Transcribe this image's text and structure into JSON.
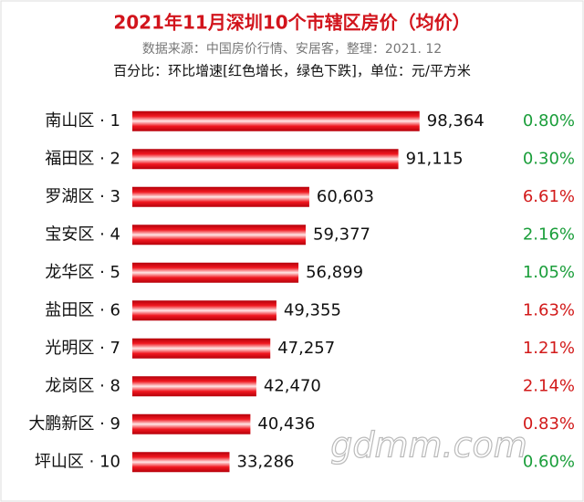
{
  "chart_data": {
    "type": "bar",
    "orientation": "horizontal",
    "title": "2021年11月深圳10个市辖区房价（均价）",
    "subtitle": "数据来源：中国房价行情、安居客，整理：2021. 12",
    "note": "百分比：环比增速[红色增长，绿色下跌]，单位：元/平方米",
    "watermark": "gdmm.com",
    "categories": [
      "南山区 · 1",
      "福田区 · 2",
      "罗湖区 · 3",
      "宝安区 · 4",
      "龙华区 · 5",
      "盐田区 · 6",
      "光明区 · 7",
      "龙岗区 · 8",
      "大鹏新区 · 9",
      "坪山区 · 10"
    ],
    "values": [
      98364,
      91115,
      60603,
      59377,
      56899,
      49355,
      47257,
      42470,
      40436,
      33286
    ],
    "value_labels": [
      "98,364",
      "91,115",
      "60,603",
      "59,377",
      "56,899",
      "49,355",
      "47,257",
      "42,470",
      "40,436",
      "33,286"
    ],
    "color": "#e8121a",
    "xlim": [
      0,
      100000
    ],
    "change": {
      "values": [
        0.8,
        0.3,
        6.61,
        2.16,
        1.05,
        1.63,
        1.21,
        2.14,
        0.83,
        0.6
      ],
      "value_labels": [
        "0.80%",
        "0.30%",
        "6.61%",
        "2.16%",
        "1.05%",
        "1.63%",
        "1.21%",
        "2.14%",
        "0.83%",
        "0.60%"
      ],
      "colors": [
        "#1a9e3a",
        "#1a9e3a",
        "#d21a1a",
        "#1a9e3a",
        "#1a9e3a",
        "#d21a1a",
        "#d21a1a",
        "#d21a1a",
        "#d21a1a",
        "#1a9e3a"
      ]
    }
  }
}
